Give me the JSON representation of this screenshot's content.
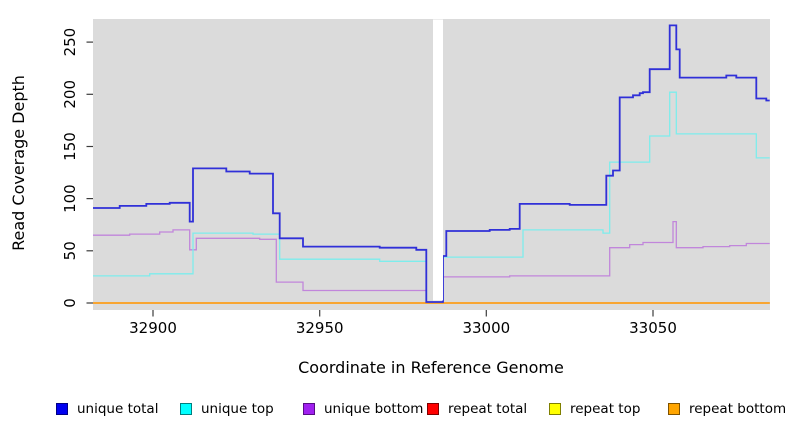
{
  "figure": {
    "x_axis_title": "Coordinate in Reference Genome",
    "y_axis_title": "Read Coverage Depth"
  },
  "legend": {
    "items": [
      {
        "label": "unique total",
        "fill": "#0000f0",
        "border": "#000085"
      },
      {
        "label": "unique top",
        "fill": "#00ffff",
        "border": "#007f7f"
      },
      {
        "label": "unique bottom",
        "fill": "#a020f0",
        "border": "#570d85"
      },
      {
        "label": "repeat total",
        "fill": "#ff0000",
        "border": "#7f0000"
      },
      {
        "label": "repeat top",
        "fill": "#ffff00",
        "border": "#7f7f00"
      },
      {
        "label": "repeat bottom",
        "fill": "#ffa500",
        "border": "#7f5200"
      }
    ]
  },
  "chart_data": {
    "type": "line",
    "step_mode": "after",
    "title": "",
    "xlabel": "Coordinate in Reference Genome",
    "ylabel": "Read Coverage Depth",
    "xlim": [
      32882,
      33085
    ],
    "ylim": [
      0,
      272
    ],
    "x_ticks": [
      32900,
      32950,
      33000,
      33050
    ],
    "y_ticks": [
      0,
      50,
      100,
      150,
      200,
      250
    ],
    "background": "#dbdbdb",
    "grid": false,
    "legend_position": "bottom",
    "gap_region": {
      "x_start": 32984,
      "x_end": 32987,
      "color": "#ffffff"
    },
    "series": [
      {
        "name": "unique bottom",
        "color": "#c186db",
        "line_width": 1.3,
        "steps": [
          [
            32882,
            65
          ],
          [
            32893,
            66
          ],
          [
            32902,
            68
          ],
          [
            32906,
            70
          ],
          [
            32911,
            51
          ],
          [
            32913,
            62
          ],
          [
            32932,
            61
          ],
          [
            32937,
            20
          ],
          [
            32945,
            12
          ],
          [
            32982,
            0
          ],
          [
            32987,
            25
          ],
          [
            33007,
            26
          ],
          [
            33037,
            53
          ],
          [
            33043,
            56
          ],
          [
            33047,
            58
          ],
          [
            33056,
            78
          ],
          [
            33057,
            53
          ],
          [
            33065,
            54
          ],
          [
            33073,
            55
          ],
          [
            33078,
            57
          ]
        ]
      },
      {
        "name": "unique top",
        "color": "#7dedec",
        "line_width": 1.3,
        "steps": [
          [
            32882,
            26
          ],
          [
            32899,
            28
          ],
          [
            32912,
            67
          ],
          [
            32930,
            66
          ],
          [
            32938,
            42
          ],
          [
            32968,
            40
          ],
          [
            32982,
            0
          ],
          [
            32987,
            44
          ],
          [
            33011,
            70
          ],
          [
            33035,
            67
          ],
          [
            33037,
            135
          ],
          [
            33049,
            160
          ],
          [
            33055,
            202
          ],
          [
            33057,
            162
          ],
          [
            33081,
            139
          ]
        ]
      },
      {
        "name": "repeat total",
        "color": "#dd0000",
        "line_width": 1.2,
        "steps": [
          [
            32882,
            0
          ]
        ]
      },
      {
        "name": "repeat top",
        "color": "#ffff00",
        "line_width": 1.2,
        "steps": [
          [
            32882,
            0
          ]
        ]
      },
      {
        "name": "repeat bottom",
        "color": "#ff9e1b",
        "line_width": 1.6,
        "steps": [
          [
            32882,
            0
          ]
        ]
      },
      {
        "name": "unique total",
        "color": "#3030d8",
        "line_width": 1.8,
        "steps": [
          [
            32882,
            91
          ],
          [
            32890,
            93
          ],
          [
            32898,
            95
          ],
          [
            32905,
            96
          ],
          [
            32911,
            78
          ],
          [
            32912,
            129
          ],
          [
            32922,
            126
          ],
          [
            32929,
            124
          ],
          [
            32936,
            86
          ],
          [
            32938,
            62
          ],
          [
            32945,
            54
          ],
          [
            32968,
            53
          ],
          [
            32979,
            51
          ],
          [
            32982,
            1
          ],
          [
            32987,
            45
          ],
          [
            32988,
            69
          ],
          [
            33001,
            70
          ],
          [
            33007,
            71
          ],
          [
            33010,
            95
          ],
          [
            33025,
            94
          ],
          [
            33036,
            122
          ],
          [
            33038,
            127
          ],
          [
            33040,
            197
          ],
          [
            33044,
            199
          ],
          [
            33046,
            201
          ],
          [
            33047,
            202
          ],
          [
            33049,
            224
          ],
          [
            33055,
            266
          ],
          [
            33057,
            243
          ],
          [
            33058,
            216
          ],
          [
            33072,
            218
          ],
          [
            33075,
            216
          ],
          [
            33081,
            196
          ],
          [
            33084,
            194
          ]
        ]
      }
    ]
  }
}
